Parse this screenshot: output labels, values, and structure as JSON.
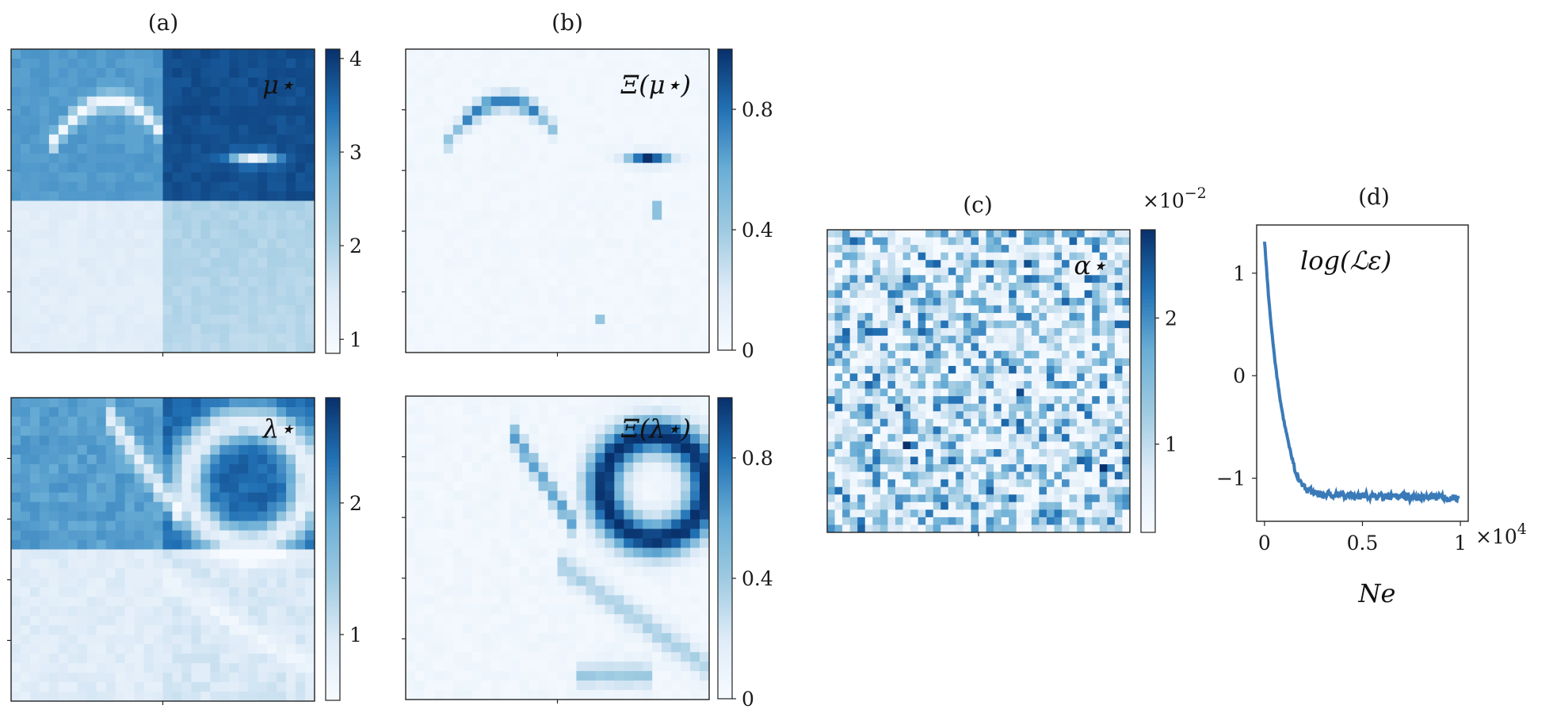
{
  "panels": {
    "a": {
      "label": "(a)",
      "top": {
        "annotation": "μ⋆",
        "colorbar": {
          "min": 0.85,
          "max": 4.1,
          "ticks": [
            "1",
            "2",
            "3",
            "4"
          ],
          "tick_values": [
            1,
            2,
            3,
            4
          ]
        },
        "quadrants": {
          "tl": 3.0,
          "tr": 3.8,
          "bl": 1.4,
          "br": 2.0
        }
      },
      "bottom": {
        "annotation": "λ⋆",
        "colorbar": {
          "min": 0.5,
          "max": 2.8,
          "ticks": [
            "1",
            "2"
          ],
          "tick_values": [
            1,
            2
          ]
        },
        "quadrants": {
          "tl": 2.0,
          "tr": 2.4,
          "bl": 0.9,
          "br": 1.0
        }
      }
    },
    "b": {
      "label": "(b)",
      "top": {
        "annotation": "Ξ(μ⋆)",
        "colorbar": {
          "min": 0,
          "max": 1.0,
          "ticks": [
            "0",
            "0.4",
            "0.8"
          ],
          "tick_values": [
            0,
            0.4,
            0.8
          ]
        }
      },
      "bottom": {
        "annotation": "Ξ(λ⋆)",
        "colorbar": {
          "min": 0,
          "max": 1.0,
          "ticks": [
            "0",
            "0.4",
            "0.8"
          ],
          "tick_values": [
            0,
            0.4,
            0.8
          ]
        }
      }
    },
    "c": {
      "label": "(c)",
      "annotation": "α⋆",
      "colorbar": {
        "min": 0.3,
        "max": 2.7,
        "ticks": [
          "1",
          "2"
        ],
        "tick_values": [
          1,
          2
        ],
        "multiplier": "×10",
        "exponent": "−2"
      }
    },
    "d": {
      "label": "(d)",
      "annotation": "log(ℒε)",
      "xlabel": "Ne",
      "x_multiplier": "×10",
      "x_exponent": "4"
    }
  },
  "colors": {
    "low": "#f7fbff",
    "mid": "#6aaed6",
    "high": "#08306b",
    "line": "#3a7ab8"
  },
  "chart_data": {
    "type": "line",
    "title": "",
    "series": [
      {
        "x": [
          0,
          100,
          200,
          300,
          400,
          500,
          600,
          700,
          800,
          900,
          1000,
          1100,
          1200,
          1300,
          1400,
          1500,
          1600,
          1700,
          1800,
          1900,
          2000,
          2200,
          2400,
          2600,
          2800,
          3000,
          3500,
          4000,
          4500,
          5000,
          5500,
          6000,
          6500,
          7000,
          7500,
          8000,
          8500,
          9000,
          9500,
          9900
        ],
        "y": [
          1.32,
          1.05,
          0.8,
          0.58,
          0.38,
          0.2,
          0.04,
          -0.1,
          -0.23,
          -0.35,
          -0.45,
          -0.55,
          -0.64,
          -0.72,
          -0.8,
          -0.87,
          -0.93,
          -0.98,
          -1.02,
          -1.05,
          -1.08,
          -1.11,
          -1.13,
          -1.14,
          -1.15,
          -1.16,
          -1.16,
          -1.17,
          -1.17,
          -1.17,
          -1.18,
          -1.18,
          -1.18,
          -1.18,
          -1.19,
          -1.19,
          -1.19,
          -1.19,
          -1.19,
          -1.2
        ]
      }
    ],
    "xlabel": "Ne",
    "ylabel": "",
    "xlim": [
      -400,
      10400
    ],
    "ylim": [
      -1.42,
      1.47
    ],
    "xticks": [
      0,
      5000,
      10000
    ],
    "xtick_labels": [
      "0",
      "0.5",
      "1"
    ],
    "yticks": [
      1,
      0,
      -1
    ],
    "ytick_labels": [
      "1",
      "0",
      "−1"
    ],
    "grid": false
  }
}
